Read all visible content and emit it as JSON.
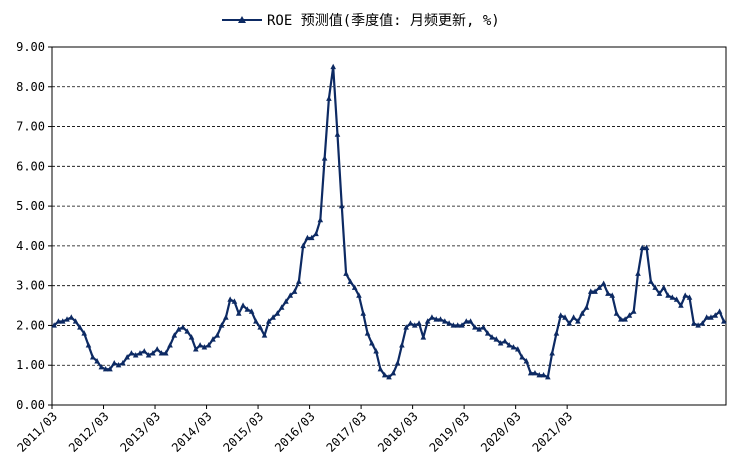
{
  "chart_data": {
    "type": "line",
    "title": "",
    "xlabel": "",
    "ylabel": "",
    "ylim": [
      0,
      9
    ],
    "grid": "horizontal dashed",
    "legend_position": "top-center",
    "y_ticks": [
      "0.00",
      "1.00",
      "2.00",
      "3.00",
      "4.00",
      "5.00",
      "6.00",
      "7.00",
      "8.00",
      "9.00"
    ],
    "x_tick_labels": [
      "2011/03",
      "2012/03",
      "2013/03",
      "2014/03",
      "2015/03",
      "2016/03",
      "2017/03",
      "2018/03",
      "2019/03",
      "2020/03",
      "2021/03"
    ],
    "start_month": "2011/03",
    "colors": {
      "series": "#0d2a63",
      "grid": "#000000",
      "axis": "#000000"
    },
    "series": [
      {
        "name": "ROE 预测值(季度值: 月频更新, %)",
        "values": [
          2.0,
          2.1,
          2.1,
          2.15,
          2.2,
          2.1,
          1.95,
          1.8,
          1.5,
          1.2,
          1.1,
          0.95,
          0.9,
          0.9,
          1.05,
          1.0,
          1.05,
          1.2,
          1.3,
          1.25,
          1.3,
          1.35,
          1.25,
          1.3,
          1.4,
          1.3,
          1.3,
          1.5,
          1.75,
          1.9,
          1.95,
          1.85,
          1.7,
          1.4,
          1.5,
          1.45,
          1.5,
          1.65,
          1.75,
          2.0,
          2.2,
          2.65,
          2.6,
          2.3,
          2.5,
          2.4,
          2.35,
          2.1,
          1.95,
          1.75,
          2.1,
          2.2,
          2.3,
          2.45,
          2.6,
          2.75,
          2.85,
          3.1,
          4.0,
          4.2,
          4.2,
          4.3,
          4.65,
          6.2,
          7.7,
          8.5,
          6.8,
          5.0,
          3.3,
          3.1,
          2.95,
          2.75,
          2.3,
          1.8,
          1.55,
          1.35,
          0.9,
          0.75,
          0.7,
          0.8,
          1.05,
          1.5,
          1.95,
          2.05,
          2.0,
          2.05,
          1.7,
          2.1,
          2.2,
          2.15,
          2.15,
          2.1,
          2.05,
          2.0,
          2.0,
          2.0,
          2.1,
          2.1,
          1.95,
          1.9,
          1.95,
          1.8,
          1.7,
          1.65,
          1.55,
          1.6,
          1.5,
          1.45,
          1.4,
          1.2,
          1.1,
          0.8,
          0.8,
          0.75,
          0.75,
          0.7,
          1.3,
          1.8,
          2.25,
          2.2,
          2.05,
          2.2,
          2.1,
          2.3,
          2.45,
          2.85,
          2.85,
          2.95,
          3.05,
          2.8,
          2.75,
          2.3,
          2.15,
          2.15,
          2.25,
          2.35,
          3.3,
          3.95,
          3.95,
          3.1,
          2.95,
          2.8,
          2.95,
          2.75,
          2.7,
          2.65,
          2.5,
          2.75,
          2.7,
          2.05,
          2.0,
          2.05,
          2.2,
          2.2,
          2.25,
          2.35,
          2.1
        ]
      }
    ]
  }
}
